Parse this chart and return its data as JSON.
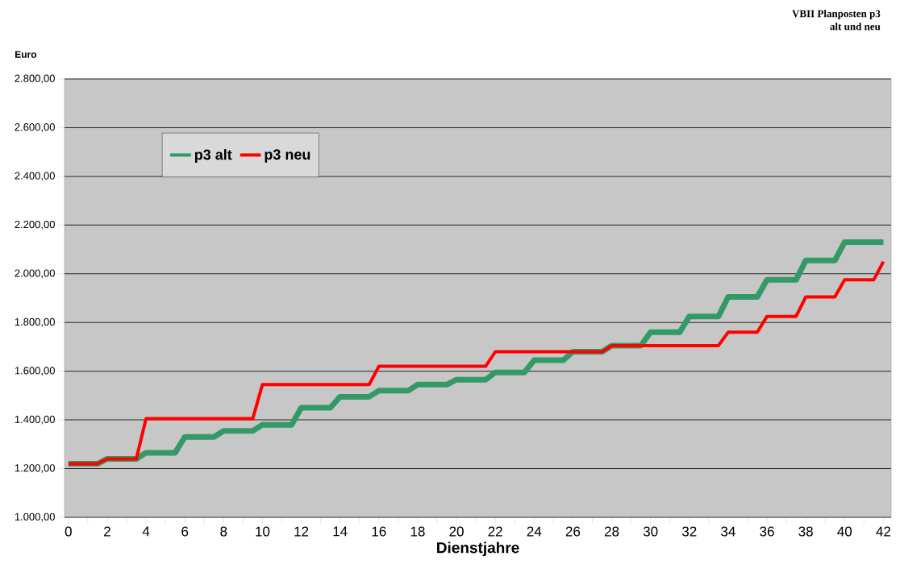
{
  "chart_data": {
    "type": "line",
    "title": "VBII Planposten p3",
    "subtitle": "alt und neu",
    "xlabel": "Dienstjahre",
    "ylabel": "Euro",
    "xlim": [
      -0.2,
      42.4
    ],
    "xticks": [
      0,
      {
        "value": 1,
        "label": null
      },
      2,
      {
        "value": 3,
        "label": null
      },
      4,
      {
        "value": 5,
        "label": null
      },
      6,
      {
        "value": 7,
        "label": null
      },
      8,
      {
        "value": 9,
        "label": null
      },
      10,
      {
        "value": 11,
        "label": null
      },
      12,
      {
        "value": 13,
        "label": null
      },
      14,
      {
        "value": 15,
        "label": null
      },
      16,
      {
        "value": 17,
        "label": null
      },
      18,
      {
        "value": 19,
        "label": null
      },
      20,
      {
        "value": 21,
        "label": null
      },
      22,
      {
        "value": 23,
        "label": null
      },
      24,
      {
        "value": 25,
        "label": null
      },
      26,
      {
        "value": 27,
        "label": null
      },
      28,
      {
        "value": 29,
        "label": null
      },
      30,
      {
        "value": 31,
        "label": null
      },
      32,
      {
        "value": 33,
        "label": null
      },
      34,
      {
        "value": 35,
        "label": null
      },
      36,
      {
        "value": 37,
        "label": null
      },
      38,
      {
        "value": 39,
        "label": null
      },
      40,
      {
        "value": 41,
        "label": null
      },
      42
    ],
    "ylim": [
      1000,
      2800
    ],
    "yticks": [
      {
        "value": 1000,
        "label": "1.000,00"
      },
      {
        "value": 1200,
        "label": "1.200,00"
      },
      {
        "value": 1400,
        "label": "1.400,00"
      },
      {
        "value": 1600,
        "label": "1.600,00"
      },
      {
        "value": 1800,
        "label": "1.800,00"
      },
      {
        "value": 2000,
        "label": "2.000,00"
      },
      {
        "value": 2200,
        "label": "2.200,00"
      },
      {
        "value": 2400,
        "label": "2.400,00"
      },
      {
        "value": 2600,
        "label": "2.600,00"
      },
      {
        "value": 2800,
        "label": "2.800,00"
      }
    ],
    "grid": "y",
    "legend": "top left",
    "marker": "none",
    "line_style": "solid",
    "series": [
      {
        "name": "p3 alt",
        "color": "#339966",
        "x": [
          0,
          1.5,
          2,
          3.5,
          4,
          5.5,
          6,
          7.5,
          8,
          9.5,
          10,
          11.5,
          12,
          13.5,
          14,
          15.5,
          16,
          17.5,
          18,
          19.5,
          20,
          21.5,
          22,
          23.5,
          24,
          25.5,
          26,
          27.5,
          28,
          29.5,
          30,
          31.5,
          32,
          33.5,
          34,
          35.5,
          36,
          37.5,
          38,
          39.5,
          40,
          42
        ],
        "values": [
          1220,
          1220,
          1240,
          1240,
          1265,
          1265,
          1330,
          1330,
          1355,
          1355,
          1380,
          1380,
          1450,
          1450,
          1495,
          1495,
          1520,
          1520,
          1545,
          1545,
          1565,
          1565,
          1595,
          1595,
          1645,
          1645,
          1680,
          1680,
          1705,
          1705,
          1760,
          1760,
          1825,
          1825,
          1905,
          1905,
          1975,
          1975,
          2055,
          2055,
          2130,
          2130
        ]
      },
      {
        "name": "p3 neu",
        "color": "#ff0000",
        "x": [
          0,
          1.5,
          2,
          3.5,
          4,
          9.5,
          10,
          15.5,
          16,
          21.5,
          22,
          27.5,
          28,
          33.5,
          34,
          35.5,
          36,
          37.5,
          38,
          39.5,
          40,
          41.5,
          42
        ],
        "values": [
          1220,
          1220,
          1240,
          1240,
          1405,
          1405,
          1545,
          1545,
          1620,
          1620,
          1680,
          1680,
          1705,
          1705,
          1760,
          1760,
          1825,
          1825,
          1905,
          1905,
          1975,
          1975,
          2050
        ]
      }
    ]
  }
}
